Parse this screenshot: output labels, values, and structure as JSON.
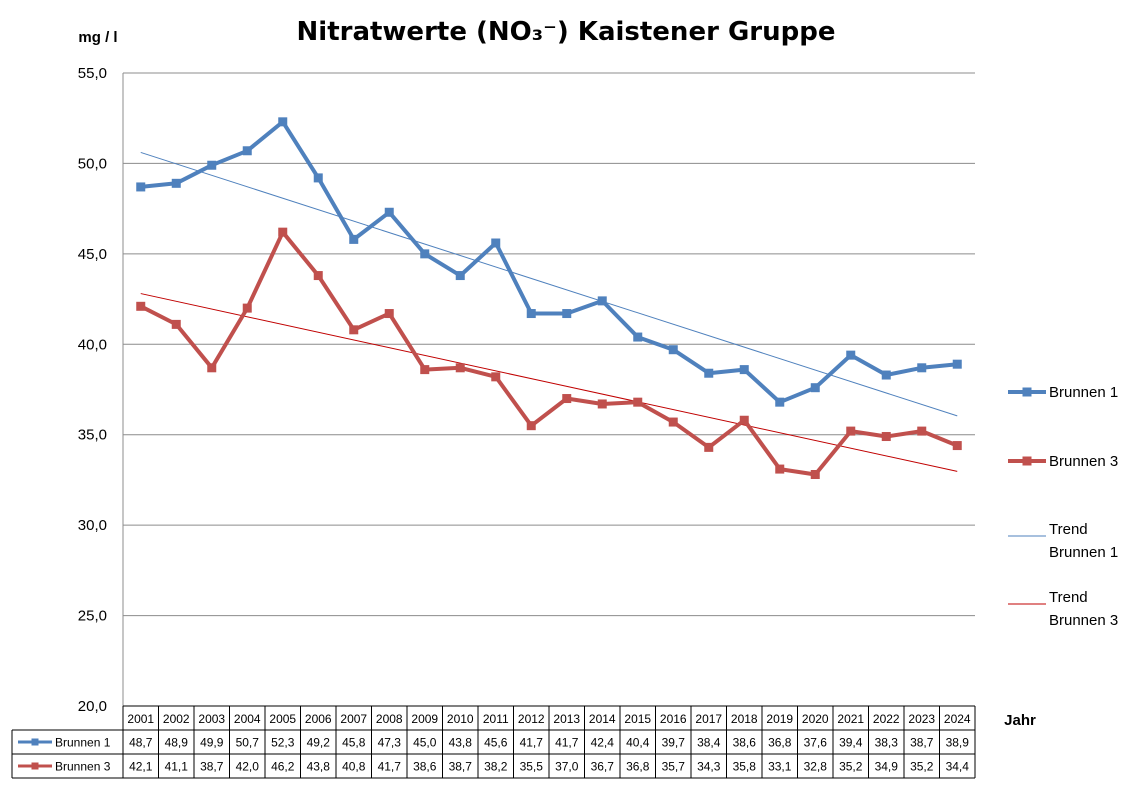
{
  "chart_data": {
    "type": "line",
    "title": "Nitratwerte (NO₃⁻) Kaistener Gruppe",
    "ylabel": "mg / l",
    "xlabel": "Jahr",
    "ylim": [
      20,
      55
    ],
    "yticks": [
      "55,0",
      "50,0",
      "45,0",
      "40,0",
      "35,0",
      "30,0",
      "25,0",
      "20,0"
    ],
    "categories": [
      "2001",
      "2002",
      "2003",
      "2004",
      "2005",
      "2006",
      "2007",
      "2008",
      "2009",
      "2010",
      "2011",
      "2012",
      "2013",
      "2014",
      "2015",
      "2016",
      "2017",
      "2018",
      "2019",
      "2020",
      "2021",
      "2022",
      "2023",
      "2024"
    ],
    "series": [
      {
        "name": "Brunnen 1",
        "color": "#4F81BD",
        "values": [
          48.7,
          48.9,
          49.9,
          50.7,
          52.3,
          49.2,
          45.8,
          47.3,
          45.0,
          43.8,
          45.6,
          41.7,
          41.7,
          42.4,
          40.4,
          39.7,
          38.4,
          38.6,
          36.8,
          37.6,
          39.4,
          38.3,
          38.7,
          38.9
        ],
        "labels": [
          "48,7",
          "48,9",
          "49,9",
          "50,7",
          "52,3",
          "49,2",
          "45,8",
          "47,3",
          "45,0",
          "43,8",
          "45,6",
          "41,7",
          "41,7",
          "42,4",
          "40,4",
          "39,7",
          "38,4",
          "38,6",
          "36,8",
          "37,6",
          "39,4",
          "38,3",
          "38,7",
          "38,9"
        ]
      },
      {
        "name": "Brunnen 3",
        "color": "#C0504D",
        "values": [
          42.1,
          41.1,
          38.7,
          42.0,
          46.2,
          43.8,
          40.8,
          41.7,
          38.6,
          38.7,
          38.2,
          35.5,
          37.0,
          36.7,
          36.8,
          35.7,
          34.3,
          35.8,
          33.1,
          32.8,
          35.2,
          34.9,
          35.2,
          34.4
        ],
        "labels": [
          "42,1",
          "41,1",
          "38,7",
          "42,0",
          "46,2",
          "43,8",
          "40,8",
          "41,7",
          "38,6",
          "38,7",
          "38,2",
          "35,5",
          "37,0",
          "36,7",
          "36,8",
          "35,7",
          "34,3",
          "35,8",
          "33,1",
          "32,8",
          "35,2",
          "34,9",
          "35,2",
          "34,4"
        ]
      }
    ],
    "trendlines": [
      {
        "name": "Trend Brunnen 1",
        "name_lines": [
          "Trend",
          "Brunnen 1"
        ],
        "of": "Brunnen 1",
        "color": "#4F81BD"
      },
      {
        "name": "Trend Brunnen 3",
        "name_lines": [
          "Trend",
          "Brunnen 3"
        ],
        "of": "Brunnen 3",
        "color": "#C00000"
      }
    ],
    "grid": true,
    "legend": "right",
    "data_table": true
  }
}
